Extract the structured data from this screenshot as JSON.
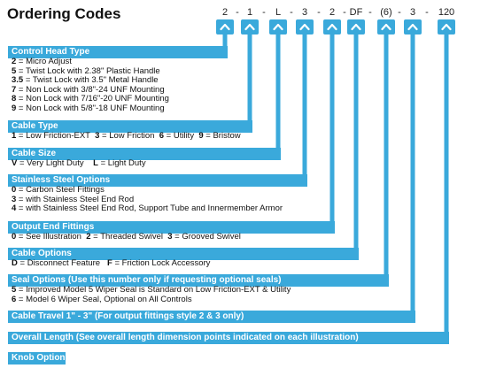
{
  "title": "Ordering Codes",
  "codes": [
    "2",
    "-",
    "1",
    "-",
    "L",
    "-",
    "3",
    "-",
    "2",
    "-",
    "DF",
    "-",
    "(6)",
    "-",
    "3",
    "-",
    "120"
  ],
  "colors": {
    "accent": "#3aa9db"
  },
  "sections": [
    {
      "header": "Control Head Type",
      "lines": [
        [
          {
            "k": "2"
          },
          {
            "t": " = Micro Adjust"
          }
        ],
        [
          {
            "k": "5"
          },
          {
            "t": " = Twist Lock with 2.38\" Plastic Handle"
          }
        ],
        [
          {
            "k": "3.5"
          },
          {
            "t": " = Twist Lock with 3.5\" Metal Handle"
          }
        ],
        [
          {
            "k": "7"
          },
          {
            "t": " = Non Lock with 3/8\"-24 UNF Mounting"
          }
        ],
        [
          {
            "k": "8"
          },
          {
            "t": " = Non Lock with 7/16\"-20 UNF Mounting"
          }
        ],
        [
          {
            "k": "9"
          },
          {
            "t": " = Non Lock with 5/8\"-18 UNF Mounting"
          }
        ]
      ]
    },
    {
      "header": "Cable Type",
      "lines": [
        [
          {
            "k": "1"
          },
          {
            "t": " = Low Friction-EXT  "
          },
          {
            "k": "3"
          },
          {
            "t": " = Low Friction  "
          },
          {
            "k": "6"
          },
          {
            "t": " = Utility  "
          },
          {
            "k": "9"
          },
          {
            "t": " = Bristow"
          }
        ]
      ]
    },
    {
      "header": "Cable Size",
      "lines": [
        [
          {
            "k": "V"
          },
          {
            "t": " = Very Light Duty    "
          },
          {
            "k": "L"
          },
          {
            "t": " = Light Duty"
          }
        ]
      ]
    },
    {
      "header": "Stainless Steel Options",
      "lines": [
        [
          {
            "k": "0"
          },
          {
            "t": " = Carbon Steel Fittings"
          }
        ],
        [
          {
            "k": "3"
          },
          {
            "t": " = with Stainless Steel End Rod"
          }
        ],
        [
          {
            "k": "4"
          },
          {
            "t": " = with Stainless Steel End Rod, Support Tube and Innermember Armor"
          }
        ]
      ]
    },
    {
      "header": "Output End Fittings",
      "lines": [
        [
          {
            "k": "0"
          },
          {
            "t": " = See Illustration  "
          },
          {
            "k": "2"
          },
          {
            "t": " = Threaded Swivel  "
          },
          {
            "k": "3"
          },
          {
            "t": " = Grooved Swivel"
          }
        ]
      ]
    },
    {
      "header": "Cable Options",
      "lines": [
        [
          {
            "k": "D"
          },
          {
            "t": " = Disconnect Feature   "
          },
          {
            "k": "F"
          },
          {
            "t": " = Friction Lock Accessory"
          }
        ]
      ]
    },
    {
      "header": "Seal Options (Use this number only if requesting optional seals)",
      "lines": [
        [
          {
            "k": "5"
          },
          {
            "t": " = Improved Model 5 Wiper Seal is Standard on Low Friction-EXT & Utility"
          }
        ],
        [
          {
            "k": "6"
          },
          {
            "t": " = Model 6 Wiper Seal, Optional on All Controls"
          }
        ]
      ]
    },
    {
      "header": "Cable Travel 1\" - 3\" (For output fittings style 2 & 3 only)",
      "lines": []
    },
    {
      "header": "Overall Length (See overall length dimension points indicated on each illustration)",
      "lines": []
    },
    {
      "header": "Knob Option",
      "lines": []
    }
  ]
}
